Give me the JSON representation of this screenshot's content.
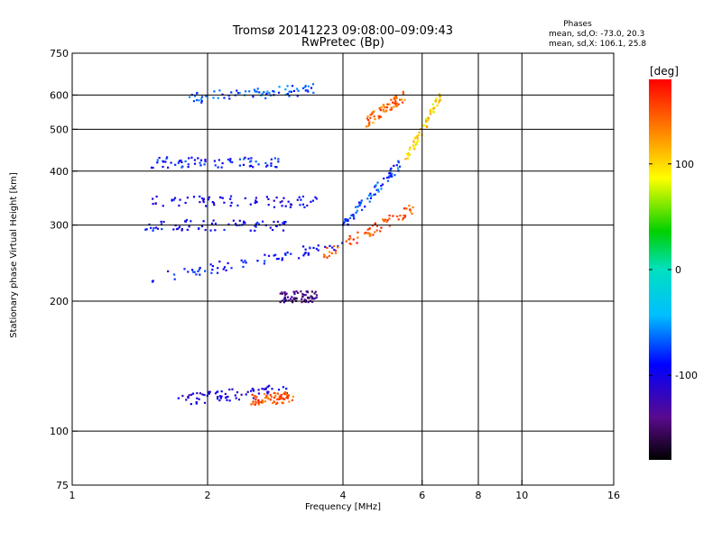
{
  "title": "Tromsø 20141223 09:08:00–09:09:43",
  "subtitle": "RwPretec (Bp)",
  "phases": {
    "header": "Phases",
    "line_o": "mean, sd,O: -73.0, 20.3",
    "line_x": "mean, sd,X: 106.1, 25.8"
  },
  "chart_data": {
    "type": "scatter",
    "title": "Tromsø 20141223 09:08:00–09:09:43",
    "subtitle": "RwPretec (Bp)",
    "xlabel": "Frequency [MHz]",
    "ylabel": "Stationary phase Virtual Height [km]",
    "x_scale": "log",
    "y_scale": "log",
    "xlim": [
      1,
      16
    ],
    "ylim": [
      75,
      750
    ],
    "x_ticks": [
      1,
      2,
      4,
      6,
      8,
      10,
      16
    ],
    "x_tick_labels": [
      "1",
      "2",
      "4",
      "6",
      "8",
      "10",
      "16"
    ],
    "y_ticks": [
      75,
      100,
      200,
      300,
      400,
      500,
      600,
      750
    ],
    "y_tick_labels": [
      "75",
      "100",
      "200",
      "300",
      "400",
      "500",
      "600",
      "750"
    ],
    "grid_x": [
      2,
      4,
      6,
      8,
      10
    ],
    "grid_y": [
      100,
      200,
      300,
      400,
      500,
      600
    ],
    "grid": true,
    "colorbar": {
      "label": "[deg]",
      "range": [
        -180,
        180
      ],
      "ticks": [
        100,
        0,
        -100
      ],
      "tick_labels": [
        "100",
        "0",
        "-100"
      ]
    },
    "series": [
      {
        "name": "O",
        "mean_phase": -73.0,
        "sd_phase": 20.3,
        "traces": [
          {
            "f_start": 1.5,
            "f_end": 4.0,
            "h_start": 225,
            "h_end": 270,
            "phase": -90
          },
          {
            "f_start": 1.45,
            "f_end": 3.0,
            "h_start": 300,
            "h_end": 300,
            "phase": -95
          },
          {
            "f_start": 1.5,
            "f_end": 3.5,
            "h_start": 340,
            "h_end": 340,
            "phase": -100
          },
          {
            "f_start": 1.5,
            "f_end": 3.0,
            "h_start": 420,
            "h_end": 420,
            "phase": -85
          },
          {
            "f_start": 1.8,
            "f_end": 3.5,
            "h_start": 590,
            "h_end": 620,
            "phase": -70
          },
          {
            "f_start": 4.0,
            "f_end": 5.4,
            "h_start": 300,
            "h_end": 420,
            "phase": -75
          },
          {
            "f_start": 1.7,
            "f_end": 3.0,
            "h_start": 118,
            "h_end": 125,
            "phase": -105
          },
          {
            "f_start": 2.9,
            "f_end": 3.5,
            "h_start": 205,
            "h_end": 205,
            "phase": -140
          }
        ]
      },
      {
        "name": "X",
        "mean_phase": 106.1,
        "sd_phase": 25.8,
        "traces": [
          {
            "f_start": 3.6,
            "f_end": 5.8,
            "h_start": 255,
            "h_end": 330,
            "phase": 150
          },
          {
            "f_start": 2.5,
            "f_end": 3.1,
            "h_start": 118,
            "h_end": 120,
            "phase": 150
          },
          {
            "f_start": 4.5,
            "f_end": 5.5,
            "h_start": 520,
            "h_end": 600,
            "phase": 140
          },
          {
            "f_start": 5.5,
            "f_end": 6.6,
            "h_start": 420,
            "h_end": 600,
            "phase": 100
          }
        ]
      }
    ]
  }
}
